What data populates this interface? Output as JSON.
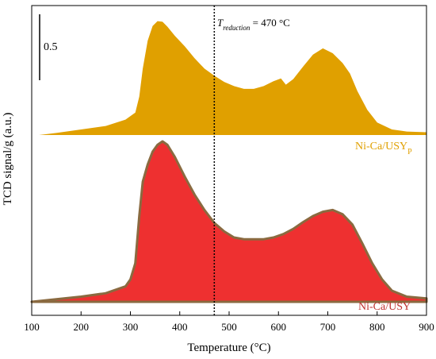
{
  "chart_data": {
    "type": "area",
    "xlabel": "Temperature (°C)",
    "ylabel": "TCD signal/g (a.u.)",
    "xlim": [
      100,
      900
    ],
    "x_ticks": [
      100,
      200,
      300,
      400,
      500,
      600,
      700,
      800,
      900
    ],
    "x_tick_labels": [
      "100",
      "200",
      "300",
      "400",
      "500",
      "600",
      "700",
      "800",
      "900"
    ],
    "y_ticks": "none",
    "grid": false,
    "scale_bar": {
      "label": "0.5",
      "value": 0.5
    },
    "reduction_line": {
      "x": 470,
      "label_main": "T",
      "label_sub": "reduction",
      "label_rest": " = 470 °C"
    },
    "series": [
      {
        "name": "Ni-Ca/USY",
        "name_sub": "P",
        "label_main": "Ni-Ca/USY",
        "color": "#E0A000",
        "offset": 1.0,
        "x": [
          115,
          150,
          200,
          250,
          290,
          310,
          318,
          325,
          335,
          345,
          355,
          365,
          375,
          390,
          410,
          430,
          450,
          470,
          490,
          510,
          530,
          550,
          570,
          590,
          605,
          615,
          630,
          650,
          670,
          690,
          710,
          730,
          745,
          760,
          780,
          800,
          830,
          860,
          900
        ],
        "y": [
          0.0,
          0.03,
          0.08,
          0.13,
          0.22,
          0.32,
          0.55,
          0.95,
          1.35,
          1.56,
          1.63,
          1.62,
          1.55,
          1.42,
          1.27,
          1.1,
          0.95,
          0.85,
          0.76,
          0.7,
          0.66,
          0.66,
          0.7,
          0.77,
          0.81,
          0.72,
          0.8,
          0.98,
          1.15,
          1.24,
          1.17,
          1.03,
          0.88,
          0.63,
          0.36,
          0.18,
          0.08,
          0.05,
          0.04
        ]
      },
      {
        "name": "Ni-Ca/USY",
        "name_sub": "",
        "label_main": "Ni-Ca/USY",
        "color": "#EE3030",
        "edge_color": "#8a6a40",
        "offset": 0.0,
        "x": [
          100,
          150,
          200,
          250,
          290,
          300,
          310,
          318,
          325,
          335,
          345,
          355,
          365,
          375,
          390,
          410,
          430,
          450,
          470,
          490,
          510,
          530,
          550,
          570,
          590,
          610,
          630,
          650,
          670,
          690,
          710,
          730,
          750,
          770,
          790,
          810,
          830,
          860,
          900
        ],
        "y": [
          0.0,
          0.03,
          0.06,
          0.1,
          0.18,
          0.26,
          0.45,
          1.0,
          1.4,
          1.6,
          1.75,
          1.83,
          1.87,
          1.83,
          1.69,
          1.46,
          1.25,
          1.07,
          0.92,
          0.82,
          0.75,
          0.73,
          0.73,
          0.73,
          0.75,
          0.79,
          0.85,
          0.93,
          1.0,
          1.05,
          1.07,
          1.02,
          0.9,
          0.68,
          0.45,
          0.26,
          0.13,
          0.06,
          0.04
        ]
      }
    ]
  }
}
